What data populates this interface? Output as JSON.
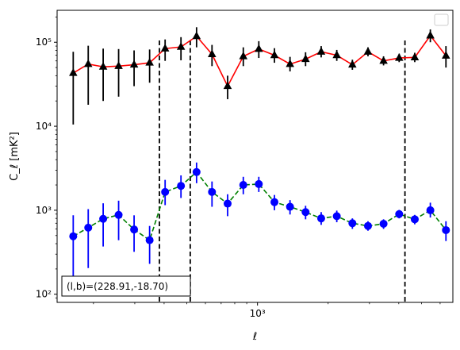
{
  "chart_data": {
    "type": "scatter",
    "title": "",
    "xlabel": "ℓ",
    "ylabel": "C_ℓ [mK²]",
    "xscale": "log",
    "yscale": "log",
    "xlim": [
      140,
      6800
    ],
    "ylim": [
      80,
      240000
    ],
    "x_ticks": [
      {
        "value": 1000,
        "label": "10³"
      }
    ],
    "y_ticks": [
      {
        "value": 100,
        "label": "10²"
      },
      {
        "value": 1000,
        "label": "10³"
      },
      {
        "value": 10000,
        "label": "10⁴"
      },
      {
        "value": 100000,
        "label": "10⁵"
      }
    ],
    "grid": false,
    "legend": "top-right (empty box)",
    "annotation": "(l,b)=(228.91,-18.70)",
    "vlines": [
      382,
      517,
      4250
    ],
    "series": [
      {
        "marker": "triangle",
        "color": "#000000",
        "line_color": "#ff0000",
        "line_style": "solid",
        "points": [
          {
            "x": 164,
            "y": 43000,
            "lo": 10500,
            "hi": 77000
          },
          {
            "x": 190,
            "y": 55000,
            "lo": 18000,
            "hi": 91000
          },
          {
            "x": 220,
            "y": 51000,
            "lo": 20000,
            "hi": 84000
          },
          {
            "x": 256,
            "y": 52000,
            "lo": 22500,
            "hi": 83000
          },
          {
            "x": 298,
            "y": 54000,
            "lo": 30000,
            "hi": 80000
          },
          {
            "x": 347,
            "y": 57000,
            "lo": 33000,
            "hi": 82000
          },
          {
            "x": 404,
            "y": 84000,
            "lo": 60000,
            "hi": 108000
          },
          {
            "x": 472,
            "y": 88000,
            "lo": 61000,
            "hi": 115000
          },
          {
            "x": 550,
            "y": 118000,
            "lo": 87000,
            "hi": 151000
          },
          {
            "x": 640,
            "y": 72000,
            "lo": 52000,
            "hi": 93000
          },
          {
            "x": 746,
            "y": 30000,
            "lo": 21000,
            "hi": 40000
          },
          {
            "x": 870,
            "y": 68000,
            "lo": 52000,
            "hi": 87000
          },
          {
            "x": 1013,
            "y": 83000,
            "lo": 65000,
            "hi": 103000
          },
          {
            "x": 1181,
            "y": 70000,
            "lo": 57000,
            "hi": 85000
          },
          {
            "x": 1376,
            "y": 55000,
            "lo": 45000,
            "hi": 67000
          },
          {
            "x": 1603,
            "y": 63000,
            "lo": 52000,
            "hi": 76000
          },
          {
            "x": 1868,
            "y": 77000,
            "lo": 66000,
            "hi": 90000
          },
          {
            "x": 2177,
            "y": 70000,
            "lo": 60000,
            "hi": 81000
          },
          {
            "x": 2537,
            "y": 54000,
            "lo": 47000,
            "hi": 62000
          },
          {
            "x": 2957,
            "y": 77000,
            "lo": 68000,
            "hi": 87000
          },
          {
            "x": 3445,
            "y": 60000,
            "lo": 53000,
            "hi": 68000
          },
          {
            "x": 4015,
            "y": 65000,
            "lo": 58000,
            "hi": 73000
          },
          {
            "x": 4679,
            "y": 66000,
            "lo": 58000,
            "hi": 75000
          },
          {
            "x": 5452,
            "y": 120000,
            "lo": 100000,
            "hi": 142000
          },
          {
            "x": 6354,
            "y": 69000,
            "lo": 50000,
            "hi": 90000
          }
        ]
      },
      {
        "marker": "circle",
        "color": "#0000ff",
        "line_color": "#008000",
        "line_style": "dashed",
        "points": [
          {
            "x": 164,
            "y": 490,
            "lo": 100,
            "hi": 870
          },
          {
            "x": 190,
            "y": 620,
            "lo": 205,
            "hi": 1030
          },
          {
            "x": 220,
            "y": 790,
            "lo": 370,
            "hi": 1210
          },
          {
            "x": 256,
            "y": 880,
            "lo": 440,
            "hi": 1300
          },
          {
            "x": 298,
            "y": 590,
            "lo": 320,
            "hi": 870
          },
          {
            "x": 347,
            "y": 440,
            "lo": 230,
            "hi": 650
          },
          {
            "x": 404,
            "y": 1650,
            "lo": 1150,
            "hi": 2300
          },
          {
            "x": 472,
            "y": 1950,
            "lo": 1400,
            "hi": 2600
          },
          {
            "x": 550,
            "y": 2850,
            "lo": 2100,
            "hi": 3700
          },
          {
            "x": 640,
            "y": 1650,
            "lo": 1100,
            "hi": 2200
          },
          {
            "x": 746,
            "y": 1200,
            "lo": 850,
            "hi": 1550
          },
          {
            "x": 870,
            "y": 2000,
            "lo": 1550,
            "hi": 2500
          },
          {
            "x": 1013,
            "y": 2050,
            "lo": 1650,
            "hi": 2500
          },
          {
            "x": 1181,
            "y": 1250,
            "lo": 1000,
            "hi": 1520
          },
          {
            "x": 1376,
            "y": 1100,
            "lo": 890,
            "hi": 1320
          },
          {
            "x": 1603,
            "y": 950,
            "lo": 780,
            "hi": 1130
          },
          {
            "x": 1868,
            "y": 800,
            "lo": 670,
            "hi": 950
          },
          {
            "x": 2177,
            "y": 850,
            "lo": 720,
            "hi": 990
          },
          {
            "x": 2537,
            "y": 700,
            "lo": 600,
            "hi": 800
          },
          {
            "x": 2957,
            "y": 650,
            "lo": 570,
            "hi": 740
          },
          {
            "x": 3445,
            "y": 690,
            "lo": 600,
            "hi": 780
          },
          {
            "x": 4015,
            "y": 900,
            "lo": 800,
            "hi": 1010
          },
          {
            "x": 4679,
            "y": 780,
            "lo": 680,
            "hi": 880
          },
          {
            "x": 5452,
            "y": 1000,
            "lo": 820,
            "hi": 1230
          },
          {
            "x": 6354,
            "y": 580,
            "lo": 430,
            "hi": 740
          }
        ]
      }
    ]
  }
}
